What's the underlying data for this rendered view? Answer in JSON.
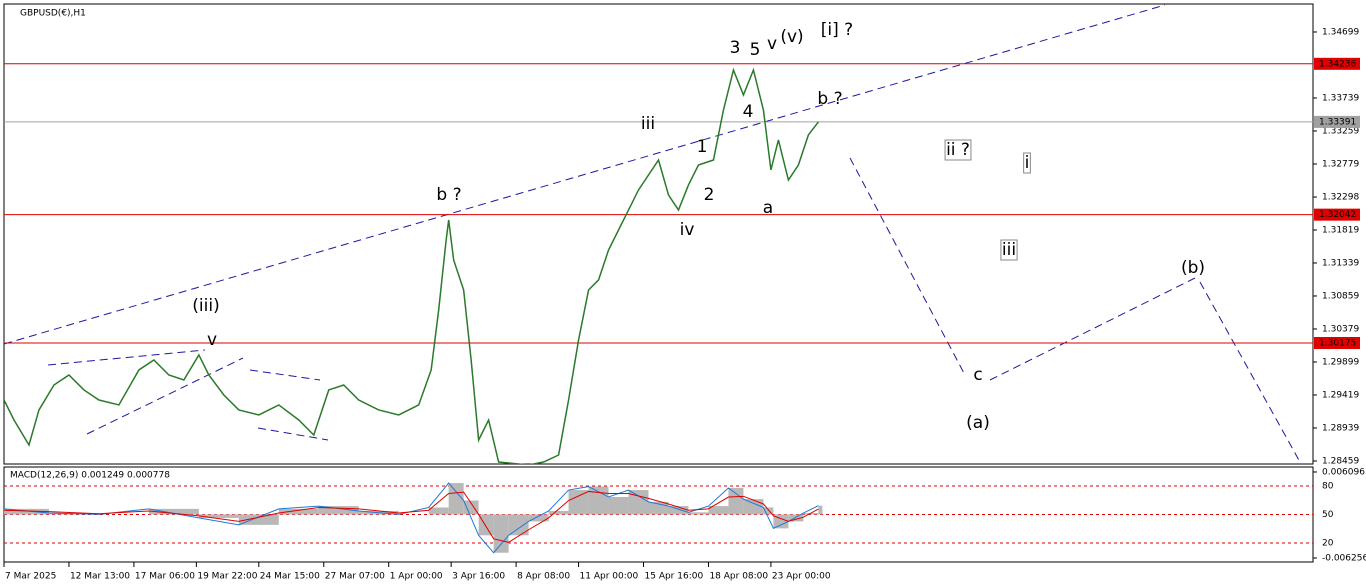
{
  "chart_data": [
    {
      "type": "line",
      "title": "GBPUSD(€),H1",
      "xlim": [
        0,
        524
      ],
      "xticks": [
        {
          "value": 0,
          "label": "7 Mar 2025"
        },
        {
          "value": 26,
          "label": "12 Mar 13:00"
        },
        {
          "value": 52,
          "label": "17 Mar 06:00"
        },
        {
          "value": 77,
          "label": "19 Mar 22:00"
        },
        {
          "value": 102,
          "label": "24 Mar 15:00"
        },
        {
          "value": 128,
          "label": "27 Mar 07:00"
        },
        {
          "value": 154,
          "label": "1 Apr 00:00"
        },
        {
          "value": 179,
          "label": "3 Apr 16:00"
        },
        {
          "value": 205,
          "label": "8 Apr 08:00"
        },
        {
          "value": 230,
          "label": "11 Apr 00:00"
        },
        {
          "value": 256,
          "label": "15 Apr 16:00"
        },
        {
          "value": 282,
          "label": "18 Apr 08:00"
        },
        {
          "value": 307,
          "label": "23 Apr 00:00"
        }
      ],
      "ylim": [
        1.28415,
        1.35106
      ],
      "yticks": [
        1.34699,
        1.33739,
        1.33259,
        1.32779,
        1.32298,
        1.31819,
        1.31339,
        1.30859,
        1.30379,
        1.29899,
        1.29419,
        1.28939,
        1.28459
      ],
      "hlines": [
        {
          "value": 1.34236,
          "color": "#e00000"
        },
        {
          "value": 1.33391,
          "color": "#a0a0a0"
        },
        {
          "value": 1.32042,
          "color": "#e00000"
        },
        {
          "value": 1.30175,
          "color": "#e00000"
        }
      ],
      "series": [
        {
          "name": "GBPUSD",
          "color": "#2a7a2a",
          "x": [
            0,
            4,
            10,
            14,
            20,
            26,
            32,
            38,
            46,
            54,
            60,
            66,
            72,
            78,
            82,
            88,
            94,
            102,
            110,
            118,
            124,
            130,
            136,
            142,
            150,
            158,
            166,
            171,
            174,
            177,
            178,
            180,
            184,
            187,
            190,
            194,
            198,
            202,
            210,
            216,
            222,
            226,
            230,
            234,
            238,
            242,
            246,
            254,
            262,
            266,
            270,
            274,
            278,
            284,
            288,
            292,
            296,
            300,
            304,
            307,
            310,
            314,
            318,
            322,
            326
          ],
          "values": [
            1.29346,
            1.29055,
            1.28692,
            1.29201,
            1.29564,
            1.2971,
            1.29492,
            1.29346,
            1.29274,
            1.29783,
            1.29928,
            1.2971,
            1.29637,
            1.30001,
            1.2971,
            1.29419,
            1.29201,
            1.29128,
            1.29274,
            1.29055,
            1.28837,
            1.29492,
            1.29564,
            1.29346,
            1.29201,
            1.29128,
            1.29274,
            1.29783,
            1.30655,
            1.31674,
            1.31964,
            1.31383,
            1.30946,
            1.29928,
            1.28764,
            1.29055,
            1.28444,
            1.2843,
            1.28401,
            1.28444,
            1.28546,
            1.29346,
            1.30219,
            1.30946,
            1.31092,
            1.31528,
            1.31819,
            1.32401,
            1.32837,
            1.32328,
            1.3211,
            1.32474,
            1.32764,
            1.32837,
            1.33564,
            1.34146,
            1.33783,
            1.34146,
            1.33564,
            1.32692,
            1.33128,
            1.32546,
            1.32764,
            1.33201,
            1.33391
          ]
        }
      ],
      "annotations": [
        {
          "text": "[i] ?",
          "color": "#2a8a2a"
        },
        {
          "text": "(v)",
          "color": "#1010a0"
        },
        {
          "text": "v",
          "color": "#e020e0"
        },
        {
          "text": "3",
          "color": "#000000"
        },
        {
          "text": "5",
          "color": "#000000"
        },
        {
          "text": "4",
          "color": "#000000"
        },
        {
          "text": "b ?",
          "color": "#e020e0"
        },
        {
          "text": "iii",
          "color": "#e020e0"
        },
        {
          "text": "1",
          "color": "#000000"
        },
        {
          "text": "2",
          "color": "#000000"
        },
        {
          "text": "a",
          "color": "#e020e0"
        },
        {
          "text": "iv",
          "color": "#e020e0"
        },
        {
          "text": "b ?",
          "color": "#e020e0"
        },
        {
          "text": "(iii)",
          "color": "#1010a0"
        },
        {
          "text": "v",
          "color": "#e020e0"
        },
        {
          "text": "ii ?",
          "color": "#e020e0"
        },
        {
          "text": "i",
          "color": "#e020e0"
        },
        {
          "text": "iii",
          "color": "#e020e0"
        },
        {
          "text": "c",
          "color": "#e020e0"
        },
        {
          "text": "(a)",
          "color": "#1010a0"
        },
        {
          "text": "(b)",
          "color": "#1010a0"
        }
      ]
    },
    {
      "type": "macd",
      "title": "MACD(12,26,9) 0.001249 0.000778",
      "xlim": [
        0,
        524
      ],
      "ylim": [
        -0.00683,
        0.00681
      ],
      "yticks": [
        0.006096,
        -0.006256
      ],
      "levels": [
        80,
        50,
        20
      ],
      "levels_lim": [
        0,
        100
      ],
      "x": [
        0,
        18,
        38,
        58,
        78,
        94,
        110,
        126,
        142,
        158,
        170,
        178,
        184,
        190,
        196,
        202,
        210,
        218,
        226,
        234,
        242,
        250,
        258,
        266,
        274,
        282,
        290,
        296,
        304,
        308,
        314,
        320,
        326
      ],
      "series": [
        {
          "name": "MACD",
          "color": "#1e78d8",
          "values": [
            0.0008,
            0.0002,
            0,
            0.0008,
            -0.0005,
            -0.0015,
            0.0008,
            0.0012,
            0.0005,
            0,
            0.001,
            0.0045,
            0.002,
            -0.003,
            -0.0055,
            -0.003,
            -0.001,
            0.0005,
            0.0035,
            0.004,
            0.0025,
            0.0035,
            0.0018,
            0.0012,
            0.0003,
            0.0012,
            0.0038,
            0.0022,
            0.001,
            -0.002,
            -0.001,
            0.0002,
            0.001249
          ]
        },
        {
          "name": "Signal",
          "color": "#e00000",
          "values": [
            0.0006,
            0.0004,
            0.0001,
            0.0005,
            -0.0002,
            -0.001,
            0.0002,
            0.001,
            0.0008,
            0.0002,
            0.0006,
            0.003,
            0.0032,
            0,
            -0.0035,
            -0.004,
            -0.0022,
            -0.0005,
            0.002,
            0.0033,
            0.003,
            0.003,
            0.0023,
            0.0015,
            0.0006,
            0.0008,
            0.0025,
            0.0026,
            0.0015,
            -0.0002,
            -0.001,
            -0.0004,
            0.000778
          ]
        }
      ]
    }
  ]
}
